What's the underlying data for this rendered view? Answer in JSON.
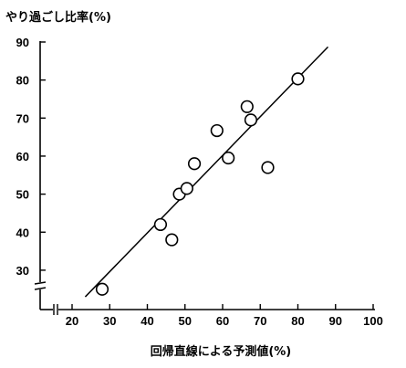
{
  "chart_data": {
    "type": "scatter",
    "ylabel": "やり過ごし比率(%)",
    "xlabel": "回帰直線による予測値(%)",
    "x_ticks": [
      20,
      30,
      40,
      50,
      60,
      70,
      80,
      90,
      100
    ],
    "y_ticks": [
      30,
      40,
      50,
      60,
      70,
      80,
      90
    ],
    "x_tick_labels": [
      "20",
      "30",
      "40",
      "50",
      "60",
      "70",
      "80",
      "90",
      "100"
    ],
    "y_tick_labels": [
      "30",
      "40",
      "50",
      "60",
      "70",
      "80",
      "90"
    ],
    "xlim": [
      15,
      100
    ],
    "ylim": [
      23,
      90
    ],
    "x_axis_break": true,
    "y_axis_break": true,
    "points": [
      {
        "x": 28,
        "y": 25
      },
      {
        "x": 43.5,
        "y": 42
      },
      {
        "x": 46.5,
        "y": 38
      },
      {
        "x": 48.5,
        "y": 50
      },
      {
        "x": 50.5,
        "y": 51.5
      },
      {
        "x": 52.5,
        "y": 58
      },
      {
        "x": 58.5,
        "y": 66.7
      },
      {
        "x": 61.5,
        "y": 59.5
      },
      {
        "x": 66.5,
        "y": 73
      },
      {
        "x": 67.5,
        "y": 69.5
      },
      {
        "x": 72,
        "y": 57
      },
      {
        "x": 80,
        "y": 80.3
      }
    ],
    "regression_line": {
      "x1": 23.5,
      "y1": 23,
      "x2": 88,
      "y2": 88.7
    }
  }
}
